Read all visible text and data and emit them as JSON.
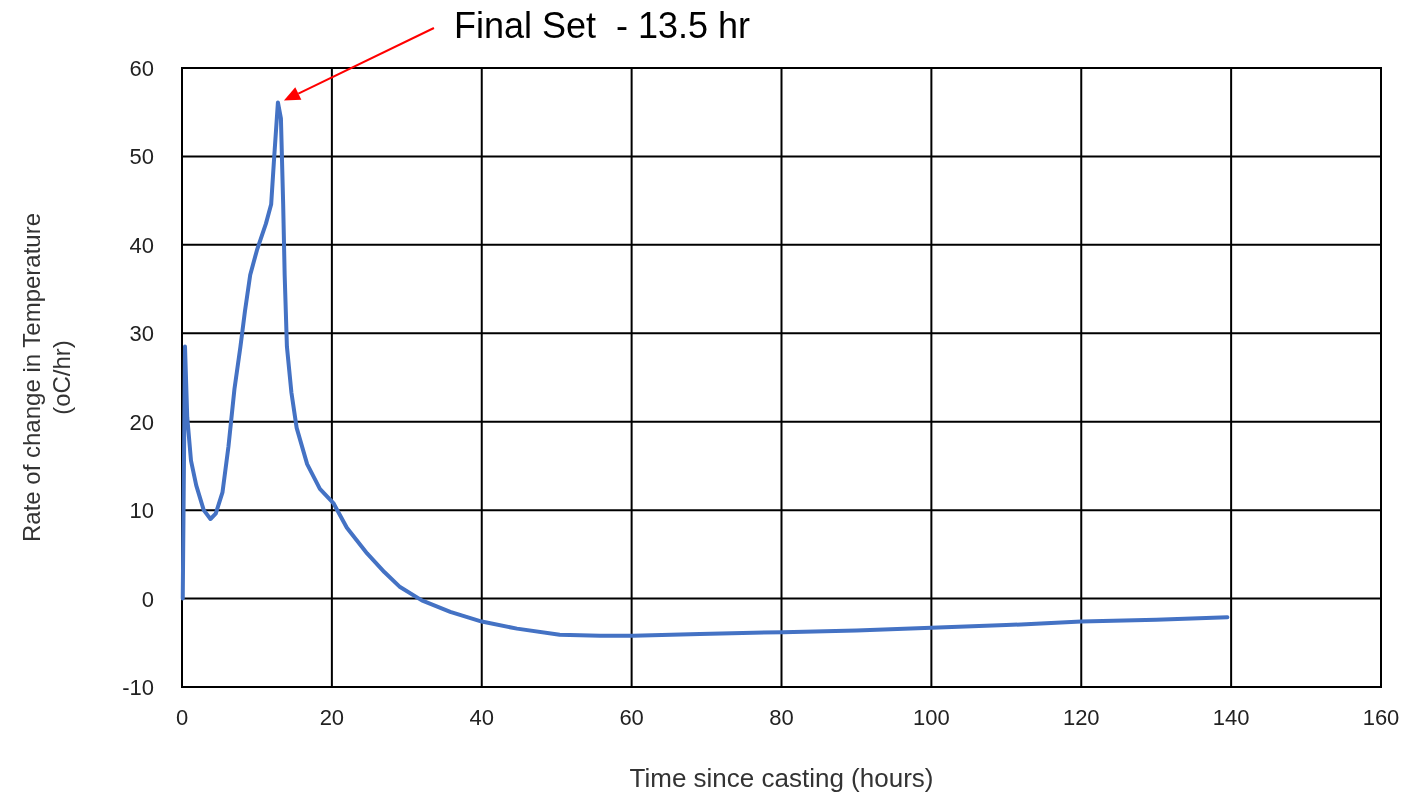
{
  "chart_data": {
    "type": "line",
    "xlabel": "Time since casting (hours)",
    "ylabel": "Rate of change in Temperature\n(oC/hr)",
    "annotations": [
      "Final Set  - 13.5 hr"
    ],
    "xlim": [
      0,
      160
    ],
    "xticks": [
      0,
      20,
      40,
      60,
      80,
      100,
      120,
      140,
      160
    ],
    "ylim": [
      -10,
      60
    ],
    "yticks": [
      -10,
      0,
      10,
      20,
      30,
      40,
      50,
      60
    ],
    "grid": true,
    "marker": "none",
    "line_style": "solid",
    "series": [
      {
        "color": "#4472c4",
        "x": [
          0.1,
          0.4,
          0.7,
          1.2,
          1.9,
          2.9,
          3.8,
          4.5,
          5.4,
          6.2,
          7.0,
          7.8,
          8.4,
          9.1,
          10.0,
          11.2,
          11.9,
          12.3,
          12.8,
          13.2,
          13.5,
          13.7,
          14.0,
          14.6,
          15.3,
          16.7,
          18.4,
          20.2,
          22.0,
          24.7,
          27.0,
          29.1,
          32.0,
          35.8,
          40,
          44.7,
          50.4,
          55.8,
          60.2,
          69.1,
          80.2,
          90,
          100,
          110,
          120,
          130,
          139.5
        ],
        "values": [
          0,
          28.5,
          20.5,
          15.6,
          12.8,
          10,
          9.0,
          9.6,
          12,
          17.2,
          23.7,
          28.5,
          32.5,
          36.6,
          39.4,
          42.4,
          44.6,
          49.9,
          56.1,
          54.3,
          44.6,
          36.6,
          28.5,
          23.3,
          19.3,
          15.2,
          12.4,
          10.8,
          8.0,
          5.1,
          3.0,
          1.3,
          -0.2,
          -1.5,
          -2.6,
          -3.4,
          -4.1,
          -4.2,
          -4.2,
          -4.0,
          -3.8,
          -3.6,
          -3.3,
          -3.0,
          -2.6,
          -2.4,
          -2.1
        ]
      }
    ]
  }
}
